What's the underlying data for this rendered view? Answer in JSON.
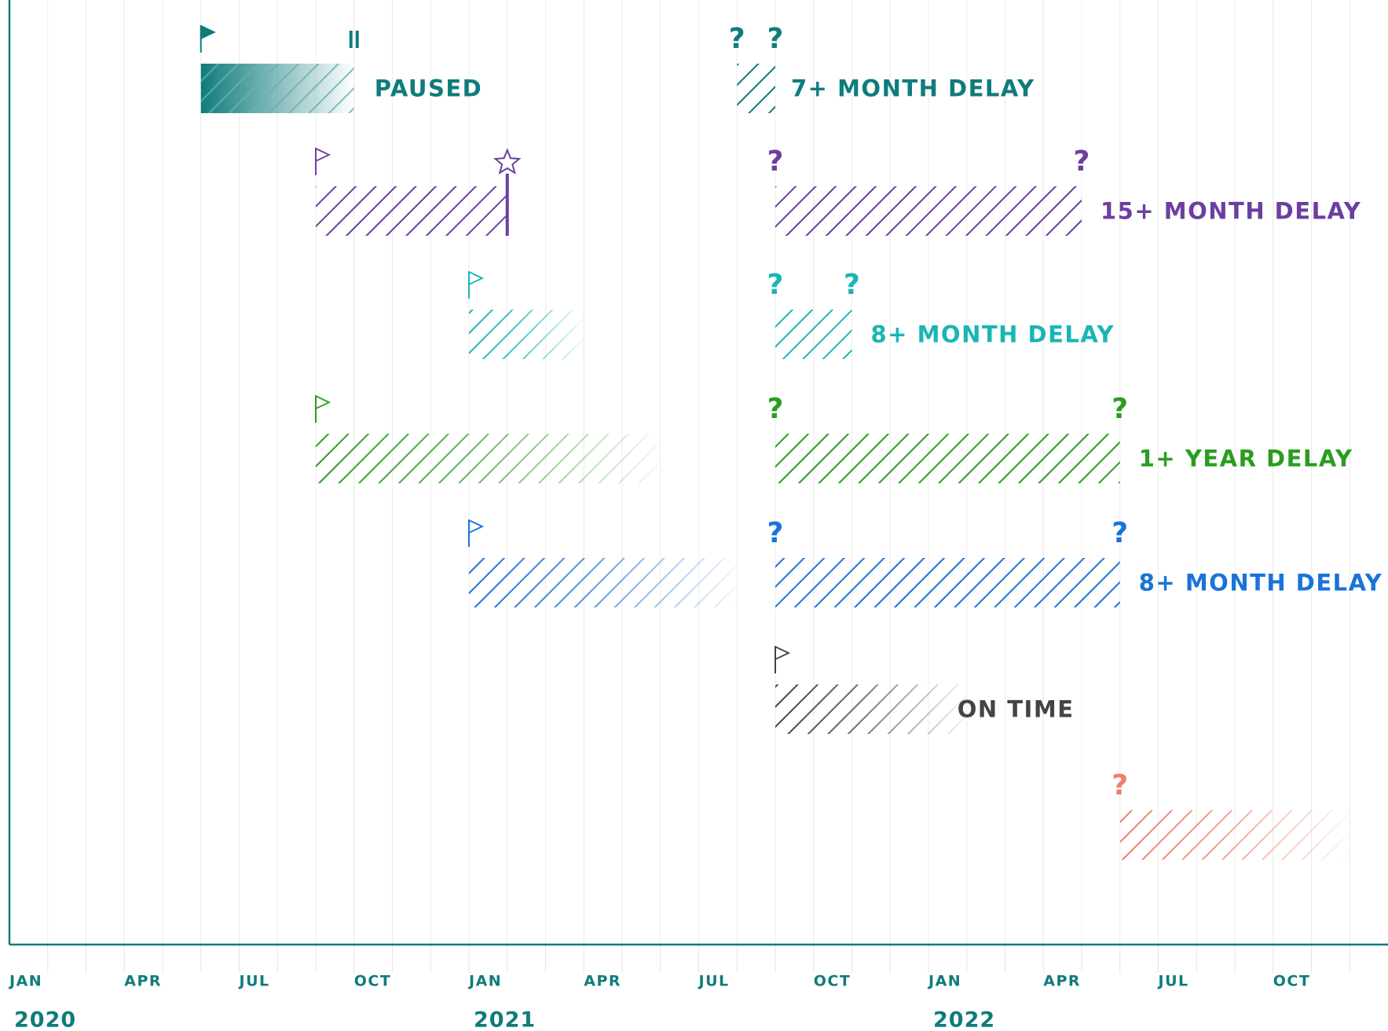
{
  "chart_data": {
    "type": "gantt",
    "xlim": [
      "2020-01",
      "2023-01"
    ],
    "grid": "monthly",
    "axis_color": "#0e7c7b",
    "xticks": [
      {
        "value": "2020-01",
        "label": "JAN"
      },
      {
        "value": "2020-04",
        "label": "APR"
      },
      {
        "value": "2020-07",
        "label": "JUL"
      },
      {
        "value": "2020-10",
        "label": "OCT"
      },
      {
        "value": "2021-01",
        "label": "JAN"
      },
      {
        "value": "2021-04",
        "label": "APR"
      },
      {
        "value": "2021-07",
        "label": "JUL"
      },
      {
        "value": "2021-10",
        "label": "OCT"
      },
      {
        "value": "2022-01",
        "label": "JAN"
      },
      {
        "value": "2022-04",
        "label": "APR"
      },
      {
        "value": "2022-07",
        "label": "JUL"
      },
      {
        "value": "2022-10",
        "label": "OCT"
      }
    ],
    "years": [
      "2020",
      "2021",
      "2022"
    ],
    "rows": [
      {
        "color": "#0e7c7b",
        "label": "PAUSED",
        "label_after": 0,
        "segments": [
          {
            "start": "2020-06",
            "end": "2020-10",
            "fill": "solid-fade",
            "start_icon": "flag-filled",
            "end_icon": "pause"
          },
          {
            "start": "2021-08",
            "end": "2021-09",
            "fill": "hatch",
            "start_mark": "?",
            "end_mark": "?"
          }
        ],
        "label2": "7+ MONTH DELAY"
      },
      {
        "color": "#6b3fa0",
        "label": "15+ MONTH DELAY",
        "segments": [
          {
            "start": "2020-09",
            "end": "2021-02",
            "fill": "hatch",
            "start_icon": "flag",
            "end_icon": "star"
          },
          {
            "start": "2021-09",
            "end": "2022-05",
            "fill": "hatch",
            "start_mark": "?",
            "end_mark": "?"
          }
        ]
      },
      {
        "color": "#1ab5b5",
        "label": "8+ MONTH DELAY",
        "segments": [
          {
            "start": "2021-01",
            "end": "2021-04",
            "fill": "hatch-fade",
            "start_icon": "flag"
          },
          {
            "start": "2021-09",
            "end": "2021-11",
            "fill": "hatch",
            "start_mark": "?",
            "end_mark": "?"
          }
        ]
      },
      {
        "color": "#2a9d1f",
        "label": "1+ YEAR DELAY",
        "segments": [
          {
            "start": "2020-09",
            "end": "2021-06",
            "fill": "hatch-fade",
            "start_icon": "flag"
          },
          {
            "start": "2021-09",
            "end": "2022-06",
            "fill": "hatch",
            "start_mark": "?",
            "end_mark": "?"
          }
        ]
      },
      {
        "color": "#1a73d9",
        "label": "8+ MONTH DELAY",
        "segments": [
          {
            "start": "2021-01",
            "end": "2021-08",
            "fill": "hatch-fade",
            "start_icon": "flag"
          },
          {
            "start": "2021-09",
            "end": "2022-06",
            "fill": "hatch",
            "start_mark": "?",
            "end_mark": "?"
          }
        ]
      },
      {
        "color": "#444444",
        "label": "ON TIME",
        "segments": [
          {
            "start": "2021-09",
            "end": "2022-02",
            "fill": "hatch-fade",
            "start_icon": "flag"
          }
        ]
      },
      {
        "color": "#ef7f6a",
        "segments": [
          {
            "start": "2022-06",
            "end": "2022-12",
            "fill": "hatch-fade",
            "start_mark": "?"
          }
        ]
      }
    ]
  }
}
